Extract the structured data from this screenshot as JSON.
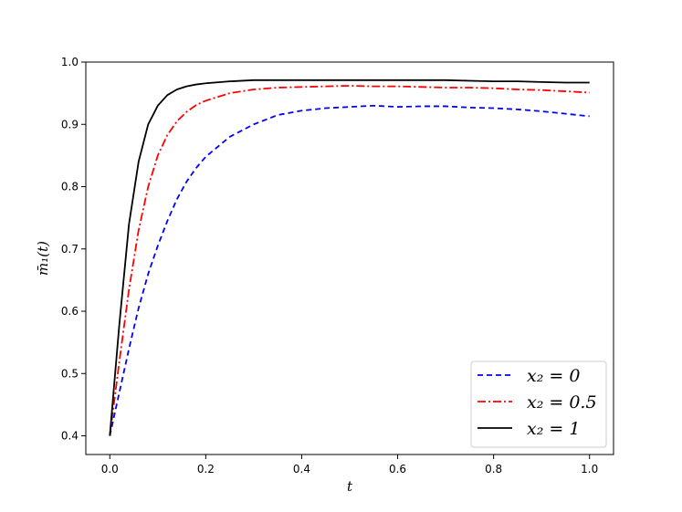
{
  "chart_data": {
    "type": "line",
    "xlabel": "t",
    "ylabel": "m̄₁(t)",
    "xlim": [
      -0.05,
      1.05
    ],
    "ylim": [
      0.37,
      1.0
    ],
    "grid": false,
    "legend_position": "bottom-right",
    "x_ticks": [
      {
        "value": 0.0,
        "label": "0.0"
      },
      {
        "value": 0.2,
        "label": "0.2"
      },
      {
        "value": 0.4,
        "label": "0.4"
      },
      {
        "value": 0.6,
        "label": "0.6"
      },
      {
        "value": 0.8,
        "label": "0.8"
      },
      {
        "value": 1.0,
        "label": "1.0"
      }
    ],
    "y_ticks": [
      {
        "value": 0.4,
        "label": "0.4"
      },
      {
        "value": 0.5,
        "label": "0.5"
      },
      {
        "value": 0.6,
        "label": "0.6"
      },
      {
        "value": 0.7,
        "label": "0.7"
      },
      {
        "value": 0.8,
        "label": "0.8"
      },
      {
        "value": 0.9,
        "label": "0.9"
      },
      {
        "value": 1.0,
        "label": "1.0"
      }
    ],
    "series": [
      {
        "name": "x₂ = 0",
        "color": "#0000ff",
        "dash": "6,4",
        "x": [
          0.0,
          0.02,
          0.04,
          0.06,
          0.08,
          0.1,
          0.12,
          0.14,
          0.16,
          0.18,
          0.2,
          0.25,
          0.3,
          0.35,
          0.4,
          0.45,
          0.5,
          0.55,
          0.6,
          0.65,
          0.7,
          0.75,
          0.8,
          0.85,
          0.9,
          0.95,
          1.0
        ],
        "y": [
          0.4,
          0.47,
          0.54,
          0.605,
          0.66,
          0.705,
          0.745,
          0.78,
          0.808,
          0.83,
          0.848,
          0.88,
          0.9,
          0.915,
          0.922,
          0.926,
          0.928,
          0.93,
          0.928,
          0.929,
          0.929,
          0.927,
          0.926,
          0.924,
          0.921,
          0.917,
          0.913
        ]
      },
      {
        "name": "x₂ = 0.5",
        "color": "#ff0000",
        "dash": "9,3,2,3",
        "x": [
          0.0,
          0.02,
          0.04,
          0.06,
          0.08,
          0.1,
          0.12,
          0.14,
          0.16,
          0.18,
          0.2,
          0.25,
          0.3,
          0.35,
          0.4,
          0.45,
          0.5,
          0.55,
          0.6,
          0.65,
          0.7,
          0.75,
          0.8,
          0.85,
          0.9,
          0.95,
          1.0
        ],
        "y": [
          0.4,
          0.52,
          0.635,
          0.73,
          0.8,
          0.85,
          0.883,
          0.905,
          0.92,
          0.931,
          0.938,
          0.95,
          0.956,
          0.959,
          0.96,
          0.961,
          0.962,
          0.961,
          0.961,
          0.96,
          0.959,
          0.959,
          0.958,
          0.956,
          0.955,
          0.953,
          0.951
        ]
      },
      {
        "name": "x₂ = 1",
        "color": "#000000",
        "dash": "",
        "x": [
          0.0,
          0.02,
          0.04,
          0.06,
          0.08,
          0.1,
          0.12,
          0.14,
          0.16,
          0.18,
          0.2,
          0.25,
          0.3,
          0.35,
          0.4,
          0.45,
          0.5,
          0.55,
          0.6,
          0.65,
          0.7,
          0.75,
          0.8,
          0.85,
          0.9,
          0.95,
          1.0
        ],
        "y": [
          0.4,
          0.58,
          0.74,
          0.84,
          0.9,
          0.93,
          0.947,
          0.956,
          0.961,
          0.964,
          0.966,
          0.969,
          0.971,
          0.971,
          0.971,
          0.971,
          0.971,
          0.971,
          0.971,
          0.971,
          0.971,
          0.97,
          0.969,
          0.969,
          0.968,
          0.967,
          0.967
        ]
      }
    ]
  }
}
